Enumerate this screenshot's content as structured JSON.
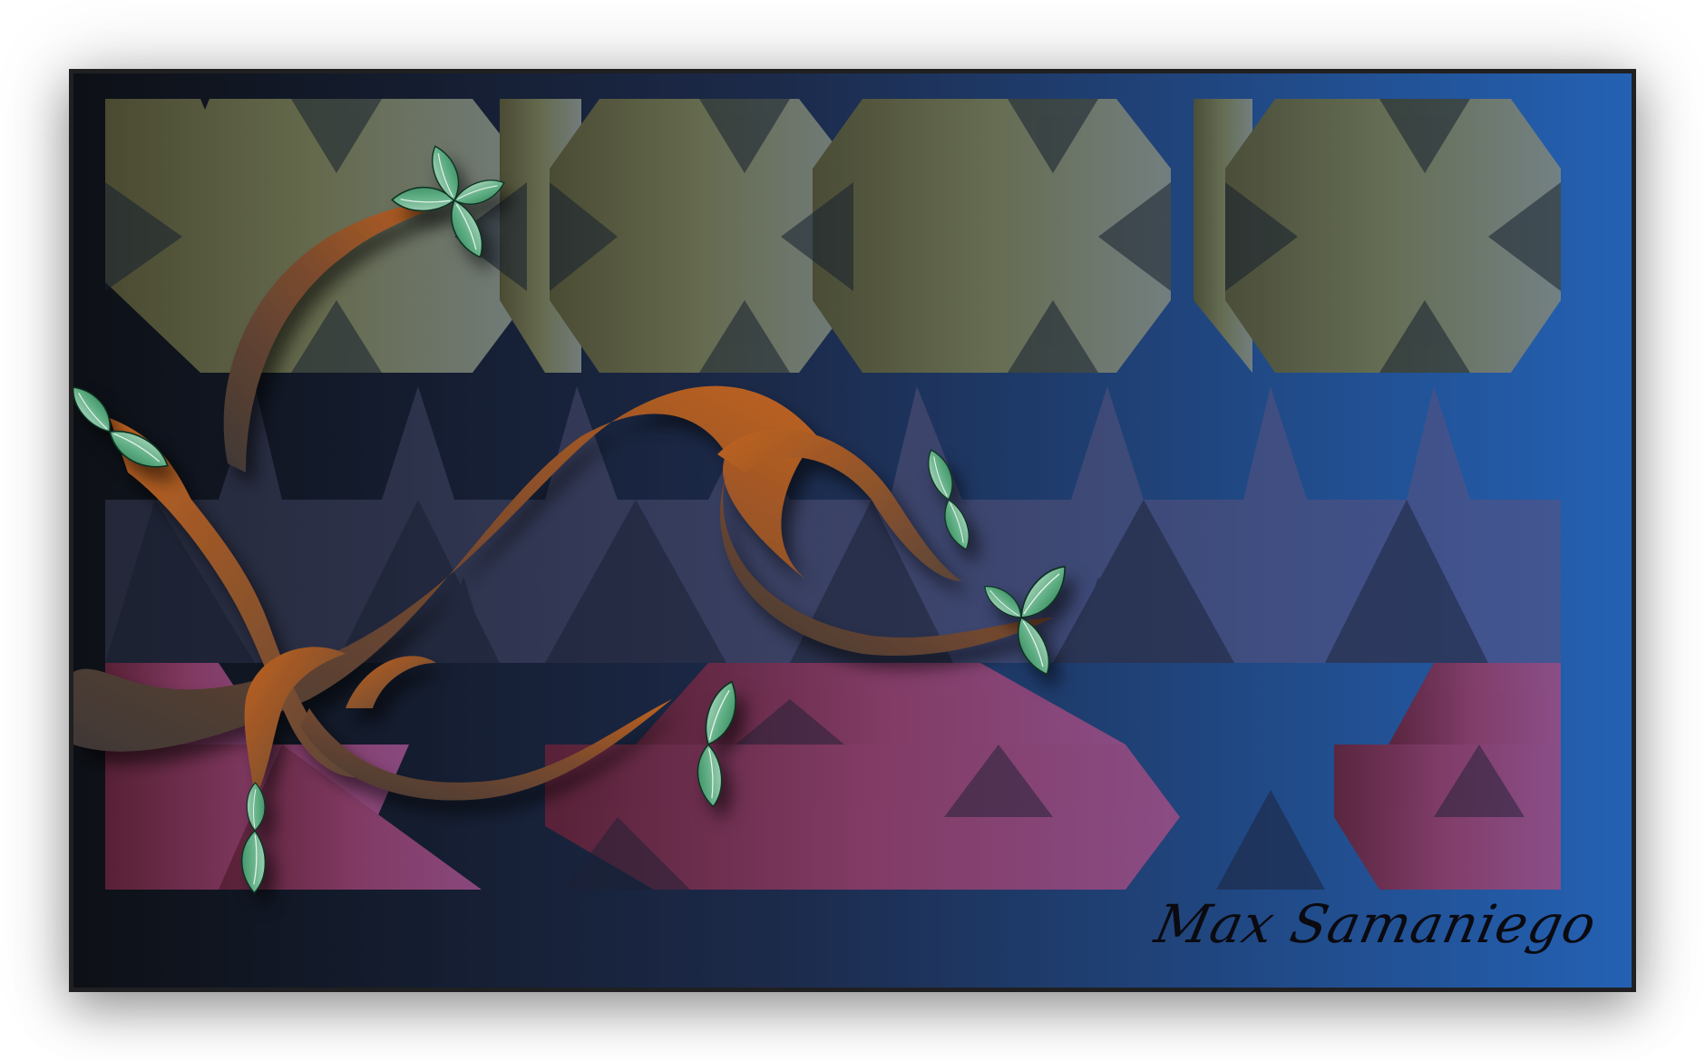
{
  "artwork": {
    "signature": "Max Samaniego",
    "colors": {
      "background_left": "#0d1016",
      "background_right": "#2461b3",
      "band_top": "#7d7e58",
      "band_middle": "#4a4f80",
      "band_bottom": "#8d3f6c",
      "branch_dark": "#4a3a33",
      "branch_orange": "#b55c23",
      "leaf_light": "#d8efe2",
      "leaf_dark": "#2f8a56"
    },
    "icons": [
      "branch",
      "leaf-cluster"
    ]
  }
}
